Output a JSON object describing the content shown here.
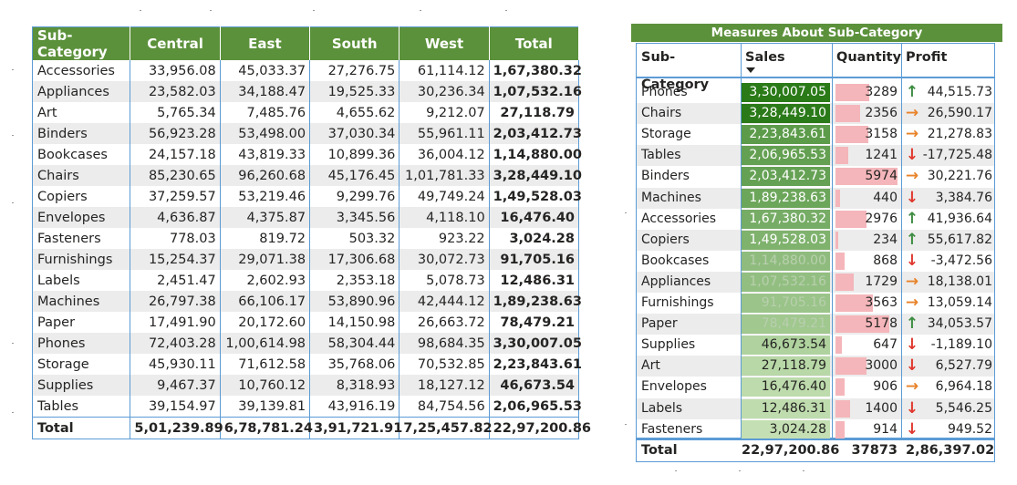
{
  "matrix": {
    "headers": [
      "Sub-Category",
      "Central",
      "East",
      "South",
      "West",
      "Total"
    ],
    "rows": [
      [
        "Accessories",
        "33,956.08",
        "45,033.37",
        "27,276.75",
        "61,114.12",
        "1,67,380.32"
      ],
      [
        "Appliances",
        "23,582.03",
        "34,188.47",
        "19,525.33",
        "30,236.34",
        "1,07,532.16"
      ],
      [
        "Art",
        "5,765.34",
        "7,485.76",
        "4,655.62",
        "9,212.07",
        "27,118.79"
      ],
      [
        "Binders",
        "56,923.28",
        "53,498.00",
        "37,030.34",
        "55,961.11",
        "2,03,412.73"
      ],
      [
        "Bookcases",
        "24,157.18",
        "43,819.33",
        "10,899.36",
        "36,004.12",
        "1,14,880.00"
      ],
      [
        "Chairs",
        "85,230.65",
        "96,260.68",
        "45,176.45",
        "1,01,781.33",
        "3,28,449.10"
      ],
      [
        "Copiers",
        "37,259.57",
        "53,219.46",
        "9,299.76",
        "49,749.24",
        "1,49,528.03"
      ],
      [
        "Envelopes",
        "4,636.87",
        "4,375.87",
        "3,345.56",
        "4,118.10",
        "16,476.40"
      ],
      [
        "Fasteners",
        "778.03",
        "819.72",
        "503.32",
        "923.22",
        "3,024.28"
      ],
      [
        "Furnishings",
        "15,254.37",
        "29,071.38",
        "17,306.68",
        "30,072.73",
        "91,705.16"
      ],
      [
        "Labels",
        "2,451.47",
        "2,602.93",
        "2,353.18",
        "5,078.73",
        "12,486.31"
      ],
      [
        "Machines",
        "26,797.38",
        "66,106.17",
        "53,890.96",
        "42,444.12",
        "1,89,238.63"
      ],
      [
        "Paper",
        "17,491.90",
        "20,172.60",
        "14,150.98",
        "26,663.72",
        "78,479.21"
      ],
      [
        "Phones",
        "72,403.28",
        "1,00,614.98",
        "58,304.44",
        "98,684.35",
        "3,30,007.05"
      ],
      [
        "Storage",
        "45,930.11",
        "71,612.58",
        "35,768.06",
        "70,532.85",
        "2,23,843.61"
      ],
      [
        "Supplies",
        "9,467.37",
        "10,760.12",
        "8,318.93",
        "18,127.12",
        "46,673.54"
      ],
      [
        "Tables",
        "39,154.97",
        "39,139.81",
        "43,916.19",
        "84,754.56",
        "2,06,965.53"
      ]
    ],
    "total": [
      "Total",
      "5,01,239.89",
      "6,78,781.24",
      "3,91,721.91",
      "7,25,457.82",
      "22,97,200.86"
    ]
  },
  "measures": {
    "title": "Measures About Sub-Category",
    "headers": {
      "sub_category": "Sub-Category",
      "sales": "Sales",
      "quantity": "Quantity",
      "profit": "Profit"
    },
    "sort_icon": "sort-descending-icon",
    "colors": {
      "header_green": "#5c913b",
      "sales_dark": "#2a7a18",
      "sales_light": "#c5e0b4",
      "qty_bar": "#f4b6ba",
      "arrow_up": "#3d8c40",
      "arrow_side": "#e8832a",
      "arrow_down": "#e0382e",
      "border_blue": "#5b9bd5"
    },
    "rows": [
      {
        "name": "Phones",
        "sales": "3,30,007.05",
        "sales_value": 330007.05,
        "qty": "3289",
        "qty_value": 3289,
        "profit": "44,515.73",
        "trend": "up"
      },
      {
        "name": "Chairs",
        "sales": "3,28,449.10",
        "sales_value": 328449.1,
        "qty": "2356",
        "qty_value": 2356,
        "profit": "26,590.17",
        "trend": "side"
      },
      {
        "name": "Storage",
        "sales": "2,23,843.61",
        "sales_value": 223843.61,
        "qty": "3158",
        "qty_value": 3158,
        "profit": "21,278.83",
        "trend": "side"
      },
      {
        "name": "Tables",
        "sales": "2,06,965.53",
        "sales_value": 206965.53,
        "qty": "1241",
        "qty_value": 1241,
        "profit": "-17,725.48",
        "trend": "down"
      },
      {
        "name": "Binders",
        "sales": "2,03,412.73",
        "sales_value": 203412.73,
        "qty": "5974",
        "qty_value": 5974,
        "profit": "30,221.76",
        "trend": "side"
      },
      {
        "name": "Machines",
        "sales": "1,89,238.63",
        "sales_value": 189238.63,
        "qty": "440",
        "qty_value": 440,
        "profit": "3,384.76",
        "trend": "down"
      },
      {
        "name": "Accessories",
        "sales": "1,67,380.32",
        "sales_value": 167380.32,
        "qty": "2976",
        "qty_value": 2976,
        "profit": "41,936.64",
        "trend": "up"
      },
      {
        "name": "Copiers",
        "sales": "1,49,528.03",
        "sales_value": 149528.03,
        "qty": "234",
        "qty_value": 234,
        "profit": "55,617.82",
        "trend": "up"
      },
      {
        "name": "Bookcases",
        "sales": "1,14,880.00",
        "sales_value": 114880.0,
        "qty": "868",
        "qty_value": 868,
        "profit": "-3,472.56",
        "trend": "down"
      },
      {
        "name": "Appliances",
        "sales": "1,07,532.16",
        "sales_value": 107532.16,
        "qty": "1729",
        "qty_value": 1729,
        "profit": "18,138.01",
        "trend": "side"
      },
      {
        "name": "Furnishings",
        "sales": "91,705.16",
        "sales_value": 91705.16,
        "qty": "3563",
        "qty_value": 3563,
        "profit": "13,059.14",
        "trend": "side"
      },
      {
        "name": "Paper",
        "sales": "78,479.21",
        "sales_value": 78479.21,
        "qty": "5178",
        "qty_value": 5178,
        "profit": "34,053.57",
        "trend": "up"
      },
      {
        "name": "Supplies",
        "sales": "46,673.54",
        "sales_value": 46673.54,
        "qty": "647",
        "qty_value": 647,
        "profit": "-1,189.10",
        "trend": "down"
      },
      {
        "name": "Art",
        "sales": "27,118.79",
        "sales_value": 27118.79,
        "qty": "3000",
        "qty_value": 3000,
        "profit": "6,527.79",
        "trend": "down"
      },
      {
        "name": "Envelopes",
        "sales": "16,476.40",
        "sales_value": 16476.4,
        "qty": "906",
        "qty_value": 906,
        "profit": "6,964.18",
        "trend": "side"
      },
      {
        "name": "Labels",
        "sales": "12,486.31",
        "sales_value": 12486.31,
        "qty": "1400",
        "qty_value": 1400,
        "profit": "5,546.25",
        "trend": "down"
      },
      {
        "name": "Fasteners",
        "sales": "3,024.28",
        "sales_value": 3024.28,
        "qty": "914",
        "qty_value": 914,
        "profit": "949.52",
        "trend": "down"
      }
    ],
    "total": {
      "label": "Total",
      "sales": "22,97,200.86",
      "qty": "37873",
      "profit": "2,86,397.02"
    }
  }
}
